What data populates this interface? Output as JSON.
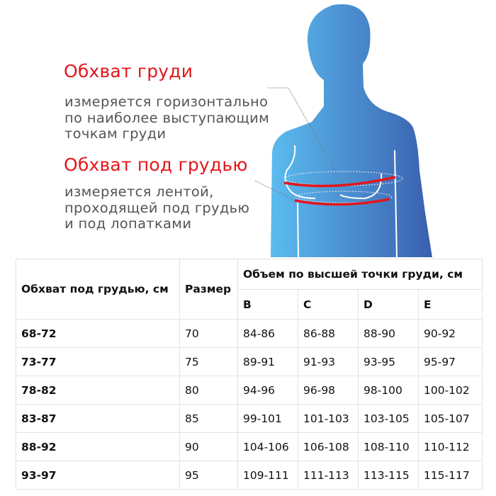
{
  "labels": {
    "bust_title": "Обхват груди",
    "bust_desc": [
      "измеряется горизонтально",
      "по наиболее выступающим",
      "точкам груди"
    ],
    "underbust_title": "Обхват под грудью",
    "underbust_desc": [
      "измеряется лентой,",
      "проходящей под грудью",
      "и под лопатками"
    ]
  },
  "colors": {
    "accent": "#e3161b",
    "figure_light": "#5bbcf0",
    "figure_dark": "#3a5fae",
    "text_gray": "#555555"
  },
  "table": {
    "header_underbust": "Обхват под грудью, см",
    "header_size": "Размер",
    "header_bust": "Объем по высшей точки груди, см",
    "cups": [
      "B",
      "C",
      "D",
      "E"
    ],
    "rows": [
      {
        "underbust": "68-72",
        "size": "70",
        "values": [
          "84-86",
          "86-88",
          "88-90",
          "90-92"
        ]
      },
      {
        "underbust": "73-77",
        "size": "75",
        "values": [
          "89-91",
          "91-93",
          "93-95",
          "95-97"
        ]
      },
      {
        "underbust": "78-82",
        "size": "80",
        "values": [
          "94-96",
          "96-98",
          "98-100",
          "100-102"
        ]
      },
      {
        "underbust": "83-87",
        "size": "85",
        "values": [
          "99-101",
          "101-103",
          "103-105",
          "105-107"
        ]
      },
      {
        "underbust": "88-92",
        "size": "90",
        "values": [
          "104-106",
          "106-108",
          "108-110",
          "110-112"
        ]
      },
      {
        "underbust": "93-97",
        "size": "95",
        "values": [
          "109-111",
          "111-113",
          "113-115",
          "115-117"
        ]
      }
    ]
  }
}
